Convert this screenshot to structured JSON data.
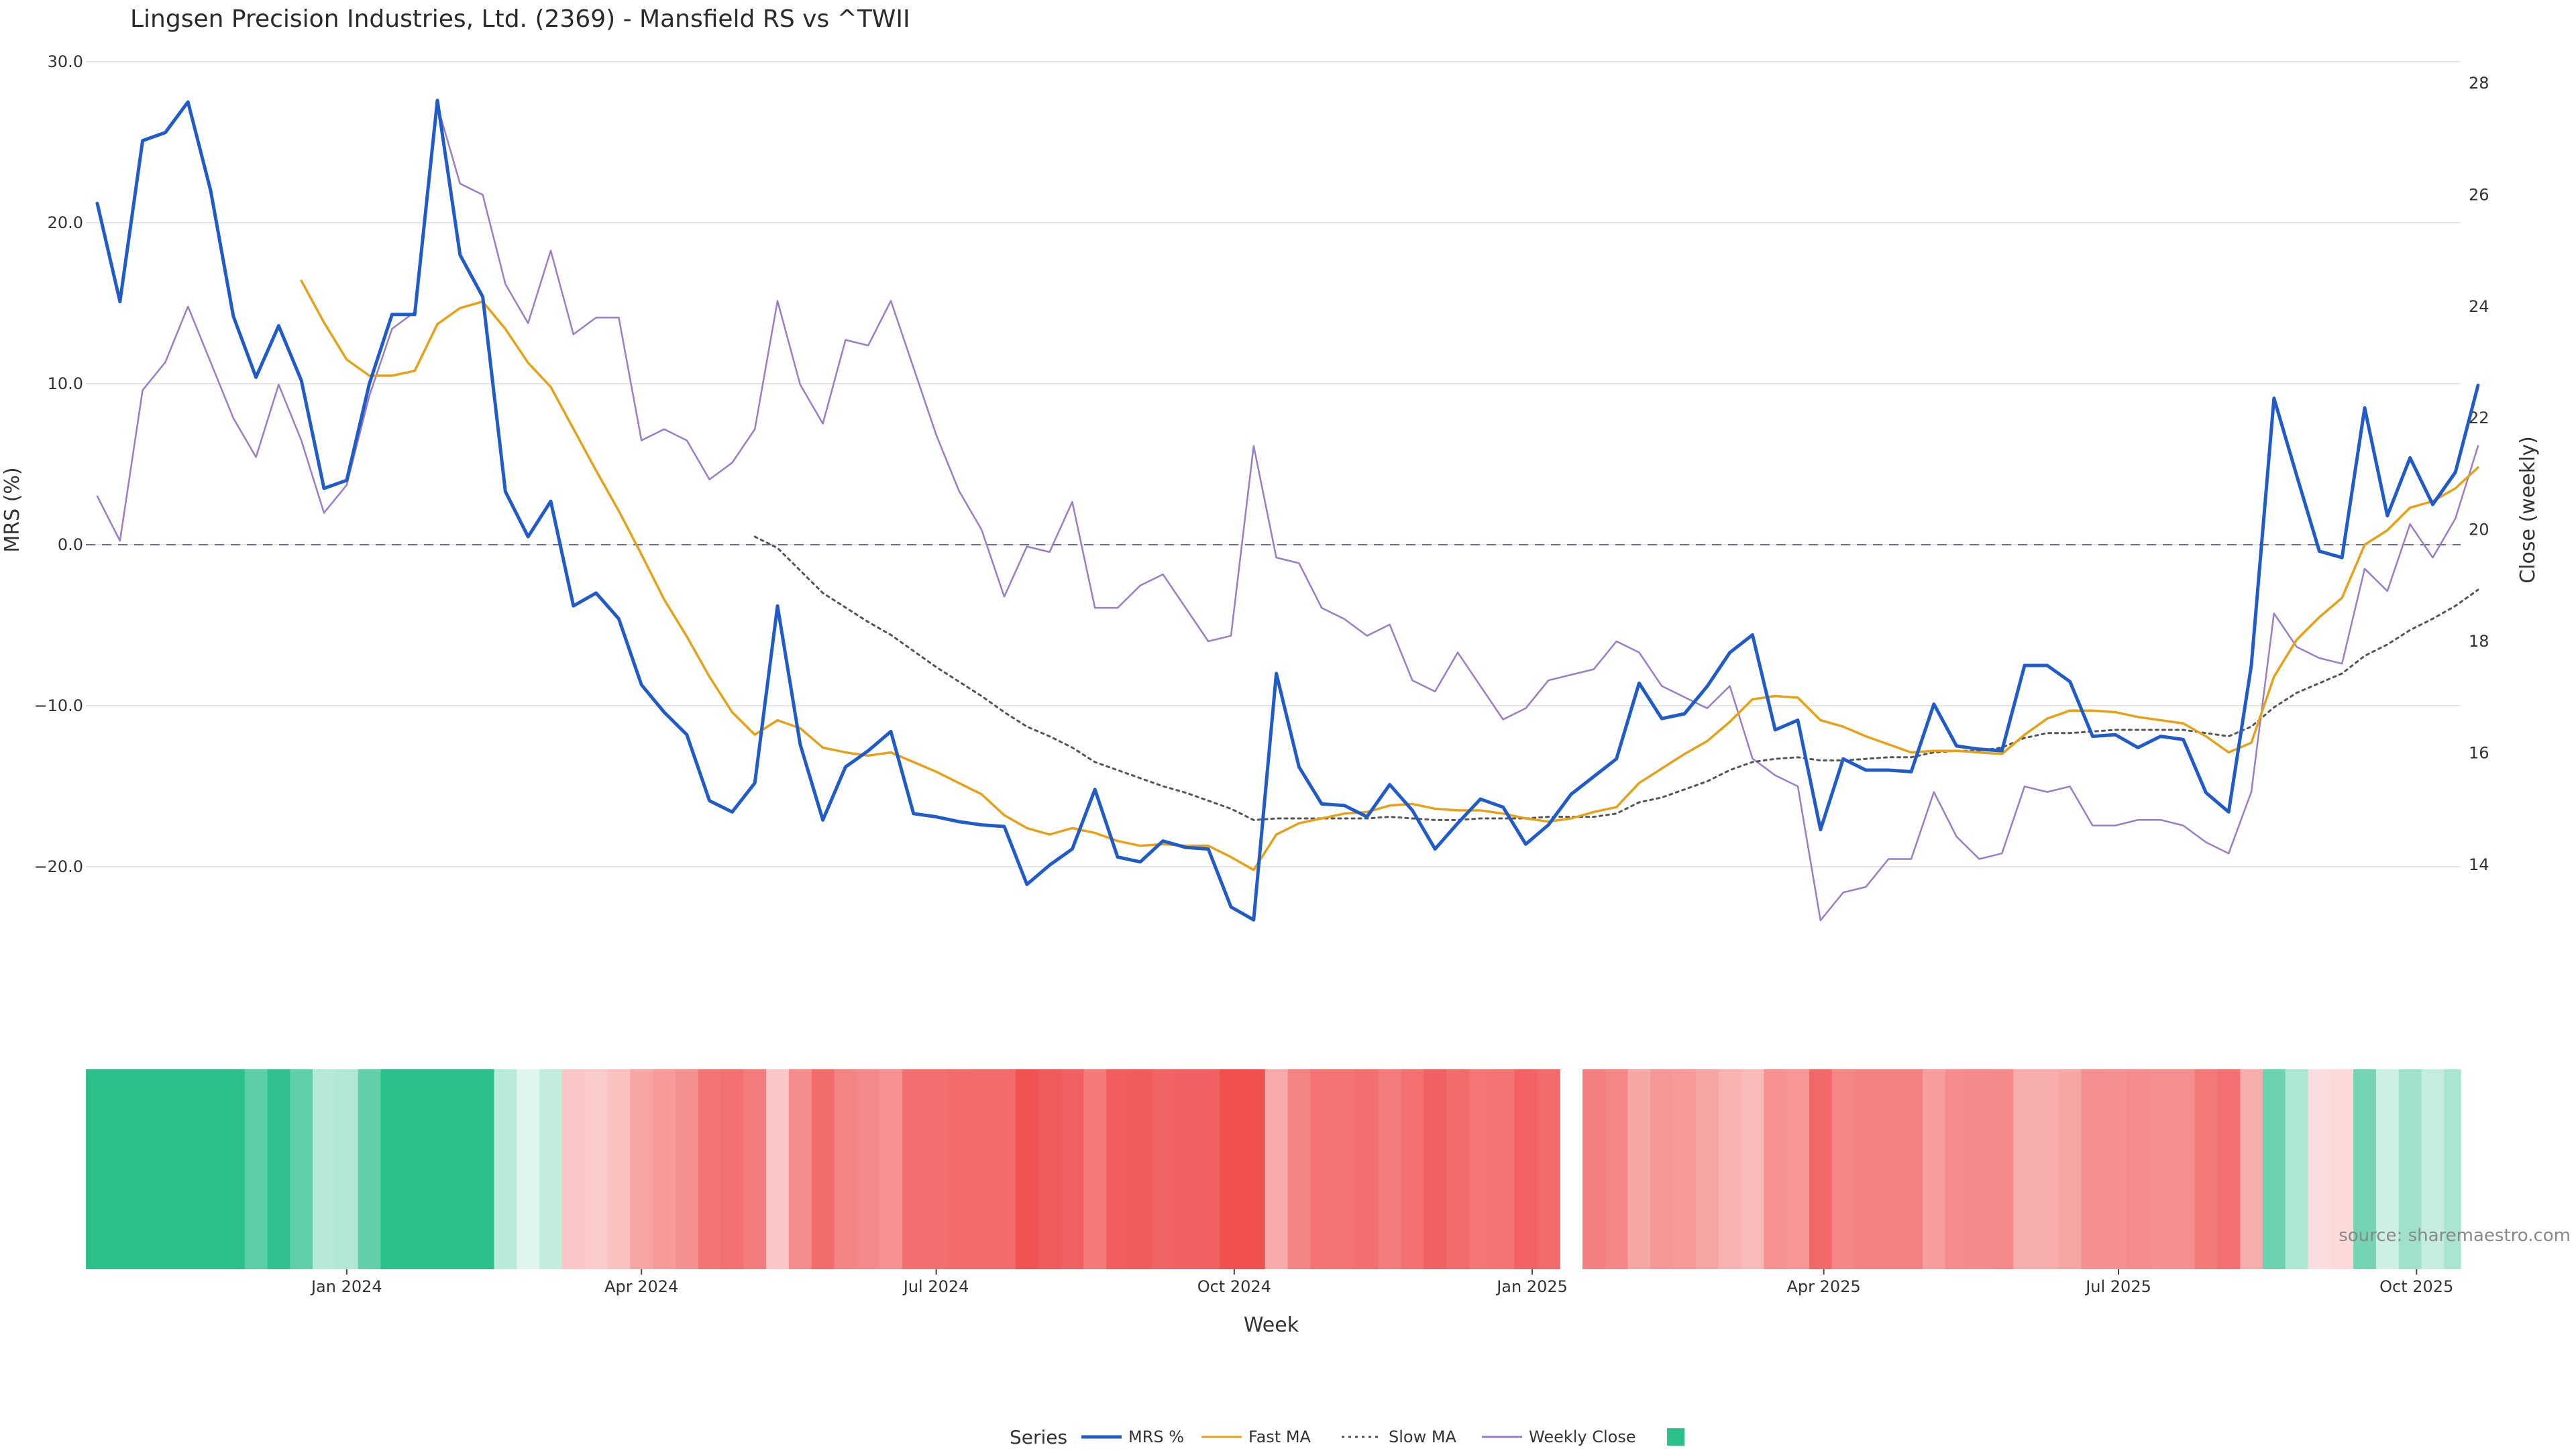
{
  "chart_data": {
    "type": "line",
    "title": "Lingsen Precision Industries, Ltd. (2369) - Mansfield RS vs ^TWII",
    "xlabel": "Week",
    "ylabel_left": "MRS (%)",
    "ylabel_right": "Close (weekly)",
    "ylim_left": [
      -30,
      30
    ],
    "ylim_right": [
      12,
      28.4
    ],
    "yticks_left": [
      30,
      20,
      10,
      0,
      -10,
      -20
    ],
    "ytick_labels_left": [
      "30.0",
      "20.0",
      "10.0",
      "0.0",
      "−10.0",
      "−20.0"
    ],
    "yticks_right": [
      28,
      26,
      24,
      22,
      20,
      18,
      16,
      14
    ],
    "ytick_labels_right": [
      "28",
      "26",
      "24",
      "22",
      "20",
      "18",
      "16",
      "14"
    ],
    "x_start_week": "2023-10-16",
    "week_count": 106,
    "x_ticks": [
      {
        "label": "Jan 2024",
        "date": "2024-01-01"
      },
      {
        "label": "Apr 2024",
        "date": "2024-04-01"
      },
      {
        "label": "Jul 2024",
        "date": "2024-07-01"
      },
      {
        "label": "Oct 2024",
        "date": "2024-10-01"
      },
      {
        "label": "Jan 2025",
        "date": "2025-01-01"
      },
      {
        "label": "Apr 2025",
        "date": "2025-04-01"
      },
      {
        "label": "Jul 2025",
        "date": "2025-07-01"
      },
      {
        "label": "Oct 2025",
        "date": "2025-10-01"
      }
    ],
    "zero_line": 0,
    "grid": true,
    "legend": {
      "position": "bottom",
      "title": "Series"
    },
    "source": "source: sharemaestro.com",
    "series": [
      {
        "name": "MRS %",
        "axis": "left",
        "color": "#1f5bc9",
        "style": "solid",
        "values": [
          21.2,
          15.1,
          25.1,
          25.6,
          27.5,
          22.0,
          14.2,
          10.4,
          13.6,
          10.2,
          3.5,
          4.0,
          10.0,
          14.3,
          14.3,
          27.6,
          18.0,
          15.4,
          3.3,
          0.5,
          2.7,
          -3.8,
          -3.0,
          -4.6,
          -8.7,
          -10.4,
          -11.8,
          -15.9,
          -16.6,
          -14.8,
          -3.8,
          -12.4,
          -17.1,
          -13.8,
          -12.8,
          -11.6,
          -16.7,
          -16.9,
          -17.2,
          -17.4,
          -17.5,
          -21.1,
          -19.9,
          -18.9,
          -15.2,
          -19.4,
          -19.7,
          -18.4,
          -18.8,
          -18.9,
          -22.5,
          -23.3,
          -8.0,
          -13.8,
          -16.1,
          -16.2,
          -16.9,
          -14.9,
          -16.5,
          -18.9,
          -17.3,
          -15.8,
          -16.3,
          -18.6,
          -17.4,
          -15.5,
          -14.4,
          -13.3,
          -8.6,
          -10.8,
          -10.5,
          -8.8,
          -6.7,
          -5.6,
          -11.5,
          -10.9,
          -17.7,
          -13.3,
          -14.0,
          -14.0,
          -14.1,
          -9.9,
          -12.5,
          -12.7,
          -12.8,
          -7.5,
          -7.5,
          -8.5,
          -11.9,
          -11.8,
          -12.6,
          -11.9,
          -12.1,
          -15.4,
          -16.6,
          -7.5,
          9.1,
          4.3,
          -0.4,
          -0.8,
          8.5,
          1.8,
          5.4,
          2.5,
          4.5,
          9.9
        ]
      },
      {
        "name": "Fast MA",
        "axis": "left",
        "color": "#e6a117",
        "style": "solid",
        "values": [
          null,
          null,
          null,
          null,
          null,
          null,
          null,
          null,
          null,
          16.4,
          13.8,
          11.5,
          10.5,
          10.5,
          10.8,
          13.7,
          14.7,
          15.1,
          13.4,
          11.3,
          9.8,
          7.2,
          4.6,
          2.1,
          -0.6,
          -3.4,
          -5.7,
          -8.2,
          -10.4,
          -11.8,
          -10.9,
          -11.4,
          -12.6,
          -12.9,
          -13.1,
          -12.9,
          -13.5,
          -14.1,
          -14.8,
          -15.5,
          -16.8,
          -17.6,
          -18.0,
          -17.6,
          -17.9,
          -18.4,
          -18.7,
          -18.6,
          -18.7,
          -18.7,
          -19.4,
          -20.2,
          -18.0,
          -17.3,
          -17.0,
          -16.7,
          -16.6,
          -16.2,
          -16.1,
          -16.4,
          -16.5,
          -16.5,
          -16.7,
          -17.0,
          -17.2,
          -17.0,
          -16.6,
          -16.3,
          -14.8,
          -13.9,
          -13.0,
          -12.2,
          -11.0,
          -9.6,
          -9.4,
          -9.5,
          -10.9,
          -11.3,
          -11.9,
          -12.4,
          -12.9,
          -12.8,
          -12.8,
          -12.9,
          -13.0,
          -11.8,
          -10.8,
          -10.3,
          -10.3,
          -10.4,
          -10.7,
          -10.9,
          -11.1,
          -11.9,
          -12.9,
          -12.3,
          -8.2,
          -5.9,
          -4.5,
          -3.3,
          0.0,
          0.9,
          2.3,
          2.7,
          3.5,
          4.8
        ]
      },
      {
        "name": "Slow MA",
        "axis": "left",
        "color": "#555555",
        "style": "dotted",
        "values": [
          null,
          null,
          null,
          null,
          null,
          null,
          null,
          null,
          null,
          null,
          null,
          null,
          null,
          null,
          null,
          null,
          null,
          null,
          null,
          null,
          null,
          null,
          null,
          null,
          null,
          null,
          null,
          null,
          null,
          0.5,
          -0.2,
          -1.6,
          -3.0,
          -3.9,
          -4.8,
          -5.6,
          -6.6,
          -7.6,
          -8.5,
          -9.4,
          -10.4,
          -11.3,
          -11.9,
          -12.6,
          -13.5,
          -14.0,
          -14.5,
          -15.0,
          -15.4,
          -15.9,
          -16.4,
          -17.1,
          -17.0,
          -17.0,
          -17.0,
          -17.0,
          -17.0,
          -16.9,
          -17.0,
          -17.1,
          -17.1,
          -17.0,
          -17.0,
          -17.0,
          -16.9,
          -16.9,
          -16.9,
          -16.7,
          -16.0,
          -15.7,
          -15.2,
          -14.7,
          -14.0,
          -13.5,
          -13.3,
          -13.2,
          -13.4,
          -13.4,
          -13.3,
          -13.2,
          -13.2,
          -12.9,
          -12.8,
          -12.8,
          -12.6,
          -12.0,
          -11.7,
          -11.7,
          -11.6,
          -11.5,
          -11.5,
          -11.5,
          -11.5,
          -11.7,
          -11.9,
          -11.3,
          -10.1,
          -9.2,
          -8.6,
          -8.0,
          -6.9,
          -6.2,
          -5.3,
          -4.6,
          -3.8,
          -2.8
        ]
      },
      {
        "name": "Weekly Close",
        "axis": "right",
        "color": "#9a7cc9",
        "style": "solid",
        "values": [
          20.6,
          19.8,
          22.5,
          23.0,
          24.0,
          23.0,
          22.0,
          21.3,
          22.6,
          21.6,
          20.3,
          20.8,
          22.4,
          23.6,
          23.9,
          27.6,
          26.2,
          26.0,
          24.4,
          23.7,
          25.0,
          23.5,
          23.8,
          23.8,
          21.6,
          21.8,
          21.6,
          20.9,
          21.2,
          21.8,
          24.1,
          22.6,
          21.9,
          23.4,
          23.3,
          24.1,
          22.9,
          21.7,
          20.7,
          20.0,
          18.8,
          19.7,
          19.6,
          20.5,
          18.6,
          18.6,
          19.0,
          19.2,
          18.6,
          18.0,
          18.1,
          21.5,
          19.5,
          19.4,
          18.6,
          18.4,
          18.1,
          18.3,
          17.3,
          17.1,
          17.8,
          17.2,
          16.6,
          16.8,
          17.3,
          17.4,
          17.5,
          18.0,
          17.8,
          17.2,
          17.0,
          16.8,
          17.2,
          15.9,
          15.6,
          15.4,
          13.0,
          13.5,
          13.6,
          14.1,
          14.1,
          15.3,
          14.5,
          14.1,
          14.2,
          15.4,
          15.3,
          15.4,
          14.7,
          14.7,
          14.8,
          14.8,
          14.7,
          14.4,
          14.2,
          15.3,
          18.5,
          17.9,
          17.7,
          17.6,
          19.3,
          18.9,
          20.1,
          19.5,
          20.2,
          21.5
        ]
      }
    ],
    "heatmap": {
      "description_source": "MRS % colored per week (green positive, red negative)",
      "missing_weeks": [
        65
      ],
      "positive_color": "#2bbf8a",
      "negative_color": "#f05050"
    }
  }
}
